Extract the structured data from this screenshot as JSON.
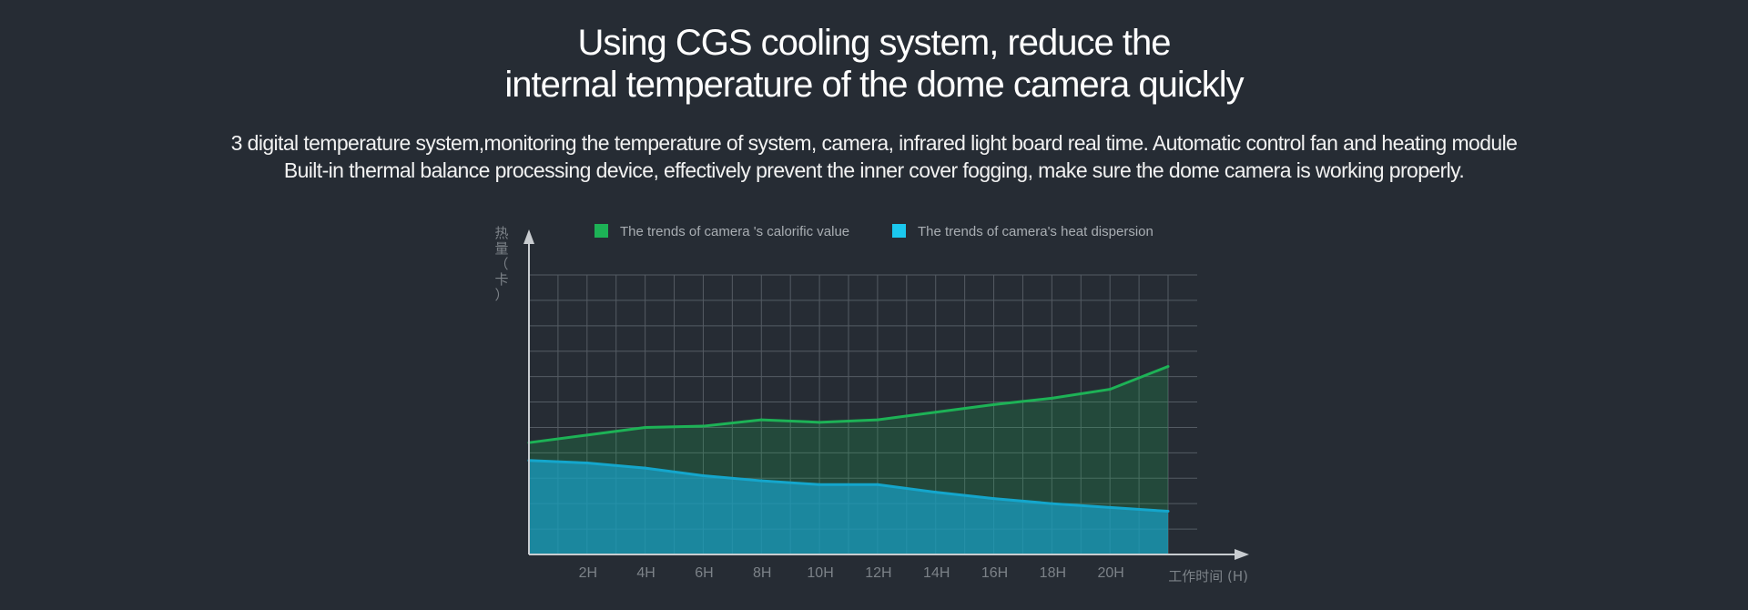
{
  "header": {
    "title_line1": "Using CGS cooling system, reduce the",
    "title_line2": "internal temperature of the dome camera quickly",
    "desc_line1": "3 digital temperature system,monitoring the temperature of system, camera, infrared light board real time. Automatic control fan and heating module",
    "desc_line2": "Built-in thermal balance processing device, effectively prevent the inner cover fogging, make sure the dome camera is working properly."
  },
  "colors": {
    "background": "#262c34",
    "calorific": "#1db256",
    "dispersion": "#1a9cc0",
    "grid": "#545b63",
    "axis": "#c8ccd0",
    "tick_text": "#7c8288"
  },
  "chart_data": {
    "type": "area",
    "ylabel": "热量（卡）",
    "xlabel": "工作时间 (H)",
    "x": [
      0,
      2,
      4,
      6,
      8,
      10,
      12,
      14,
      16,
      18,
      20,
      22
    ],
    "x_tick_labels": [
      "2H",
      "4H",
      "6H",
      "8H",
      "10H",
      "12H",
      "14H",
      "16H",
      "18H",
      "20H"
    ],
    "xlim": [
      0,
      24
    ],
    "ylim": [
      0,
      11
    ],
    "grid": true,
    "legend_position": "top",
    "series": [
      {
        "name": "The trends of camera 's calorific value",
        "values": [
          4.4,
          4.7,
          5.0,
          5.05,
          5.3,
          5.2,
          5.3,
          5.6,
          5.9,
          6.15,
          6.5,
          7.4
        ]
      },
      {
        "name": "The trends of camera's heat dispersion",
        "values": [
          3.7,
          3.6,
          3.4,
          3.1,
          2.9,
          2.75,
          2.75,
          2.45,
          2.2,
          2.0,
          1.85,
          1.7
        ]
      }
    ]
  }
}
